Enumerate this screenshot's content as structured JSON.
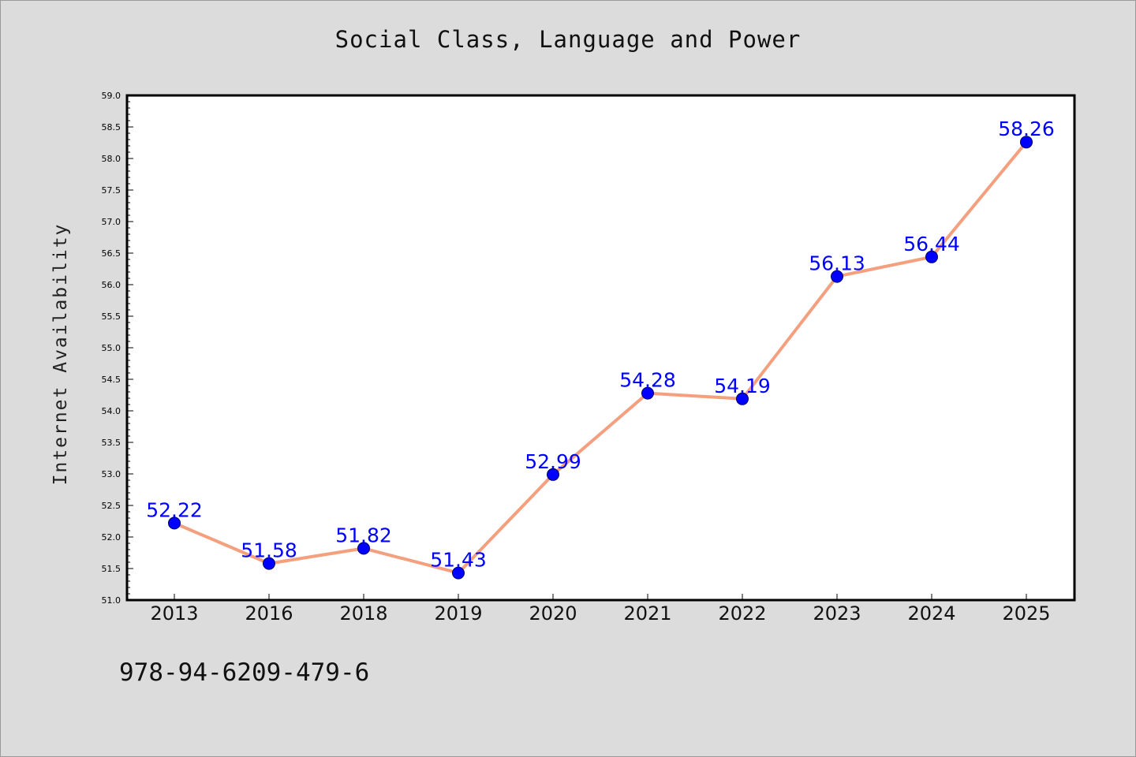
{
  "chart_data": {
    "type": "line",
    "title": "Social Class, Language and Power",
    "xlabel": "",
    "ylabel": "Internet Availability",
    "categories": [
      "2013",
      "2016",
      "2018",
      "2019",
      "2020",
      "2021",
      "2022",
      "2023",
      "2024",
      "2025"
    ],
    "values": [
      52.22,
      51.58,
      51.82,
      51.43,
      52.99,
      54.28,
      54.19,
      56.13,
      56.44,
      58.26
    ],
    "data_labels": [
      "52.22",
      "51.58",
      "51.82",
      "51.43",
      "52.99",
      "54.28",
      "54.19",
      "56.13",
      "56.44",
      "58.26"
    ],
    "ylim": [
      51.0,
      59.0
    ],
    "yticks": [
      "51.0",
      "51.5",
      "52.0",
      "52.5",
      "53.0",
      "53.5",
      "54.0",
      "54.5",
      "55.0",
      "55.5",
      "56.0",
      "56.5",
      "57.0",
      "57.5",
      "58.0",
      "58.5",
      "59.0"
    ],
    "grid": false,
    "line_color": "#f4a07f",
    "marker_color": "#0000ff",
    "label_color": "#0000ff",
    "background_color": "#dcdcdc"
  },
  "footnote": "978-94-6209-479-6"
}
